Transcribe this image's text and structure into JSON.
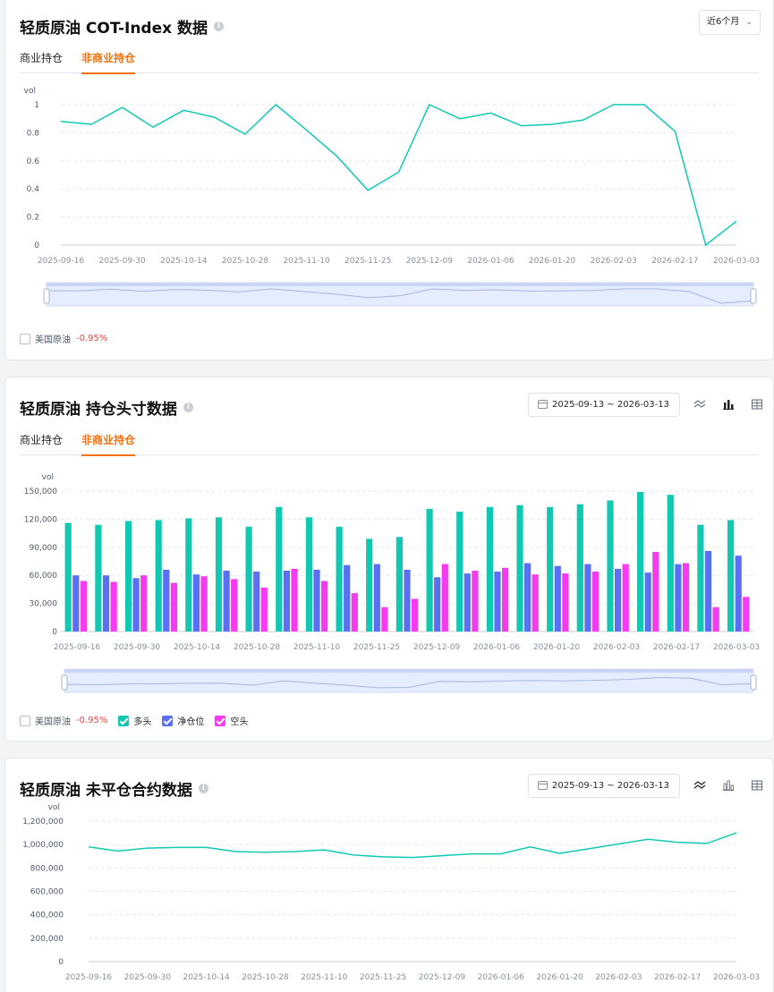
{
  "cot": {
    "title": "轻质原油 COT-Index 数据",
    "period_select": "近6个月",
    "tabs": [
      "商业持仓",
      "非商业持仓"
    ],
    "active_tab": 1,
    "legend": {
      "name": "美国原油",
      "change": "-0.95%"
    }
  },
  "position": {
    "title": "轻质原油 持仓头寸数据",
    "date_range": "2025-09-13 ~ 2026-03-13",
    "tabs": [
      "商业持仓",
      "非商业持仓"
    ],
    "active_tab": 1,
    "legend": {
      "name": "美国原油",
      "change": "-0.95%",
      "series": [
        {
          "name": "多头",
          "color": "#11c9b2"
        },
        {
          "name": "净仓位",
          "color": "#5b6ff5"
        },
        {
          "name": "空头",
          "color": "#f53af0"
        }
      ]
    }
  },
  "open_interest": {
    "title": "轻质原油 未平仓合约数据",
    "date_range": "2025-09-13 ~ 2026-03-13"
  },
  "icons": [
    "info-icon",
    "chevron-down-icon",
    "calendar-icon",
    "line-chart-icon",
    "bar-chart-icon",
    "table-icon"
  ],
  "chart_data": [
    {
      "type": "line",
      "ylabel": "vol",
      "ylim": [
        0,
        1
      ],
      "yticks": [
        "0",
        "0.2",
        "0.4",
        "0.6",
        "0.8",
        "1"
      ],
      "xticks": [
        "2025-09-16",
        "2025-09-30",
        "2025-10-14",
        "2025-10-28",
        "2025-11-10",
        "2025-11-25",
        "2025-12-09",
        "2026-01-06",
        "2026-01-20",
        "2026-02-03",
        "2026-02-17",
        "2026-03-03"
      ],
      "color": "#11c9b2",
      "values": [
        0.88,
        0.86,
        0.98,
        0.84,
        0.96,
        0.91,
        0.79,
        1.0,
        0.82,
        0.63,
        0.39,
        0.52,
        1.0,
        0.9,
        0.94,
        0.85,
        0.86,
        0.89,
        1.0,
        1.0,
        0.81,
        0.0,
        0.17
      ]
    },
    {
      "type": "bar",
      "ylabel": "vol",
      "ylim": [
        0,
        150000
      ],
      "yticks": [
        "0",
        "30,000",
        "60,000",
        "90,000",
        "120,000",
        "150,000"
      ],
      "xticks": [
        "2025-09-16",
        "2025-09-30",
        "2025-10-14",
        "2025-10-28",
        "2025-11-10",
        "2025-11-25",
        "2025-12-09",
        "2026-01-06",
        "2026-01-20",
        "2026-02-03",
        "2026-02-17",
        "2026-03-03"
      ],
      "series": [
        {
          "name": "多头",
          "color": "#11c9b2",
          "values": [
            116000,
            114000,
            118000,
            119000,
            121000,
            122000,
            112000,
            133000,
            122000,
            112000,
            99000,
            101000,
            131000,
            128000,
            133000,
            135000,
            133000,
            136000,
            140000,
            149000,
            146000,
            114000,
            119000
          ]
        },
        {
          "name": "净仓位",
          "color": "#5b6ff5",
          "values": [
            60000,
            60000,
            57000,
            66000,
            61000,
            65000,
            64000,
            65000,
            66000,
            71000,
            72000,
            66000,
            58000,
            62000,
            64000,
            73000,
            70000,
            72000,
            67000,
            63000,
            72000,
            86000,
            81000
          ]
        },
        {
          "name": "空头",
          "color": "#f53af0",
          "values": [
            54000,
            53000,
            60000,
            52000,
            59000,
            56000,
            47000,
            67000,
            54000,
            41000,
            26000,
            35000,
            72000,
            65000,
            68000,
            61000,
            62000,
            64000,
            72000,
            85000,
            73000,
            26000,
            37000
          ]
        }
      ]
    },
    {
      "type": "line",
      "ylabel": "vol",
      "ylim": [
        0,
        1200000
      ],
      "yticks": [
        "0",
        "200,000",
        "400,000",
        "600,000",
        "800,000",
        "1,000,000",
        "1,200,000"
      ],
      "xticks": [
        "2025-09-16",
        "2025-09-30",
        "2025-10-14",
        "2025-10-28",
        "2025-11-10",
        "2025-11-25",
        "2025-12-09",
        "2026-01-06",
        "2026-01-20",
        "2026-02-03",
        "2026-02-17",
        "2026-03-03"
      ],
      "color": "#11c9b2",
      "values": [
        980000,
        945000,
        970000,
        975000,
        975000,
        940000,
        935000,
        940000,
        955000,
        910000,
        895000,
        890000,
        905000,
        920000,
        920000,
        980000,
        925000,
        965000,
        1005000,
        1045000,
        1020000,
        1010000,
        1100000
      ]
    }
  ]
}
